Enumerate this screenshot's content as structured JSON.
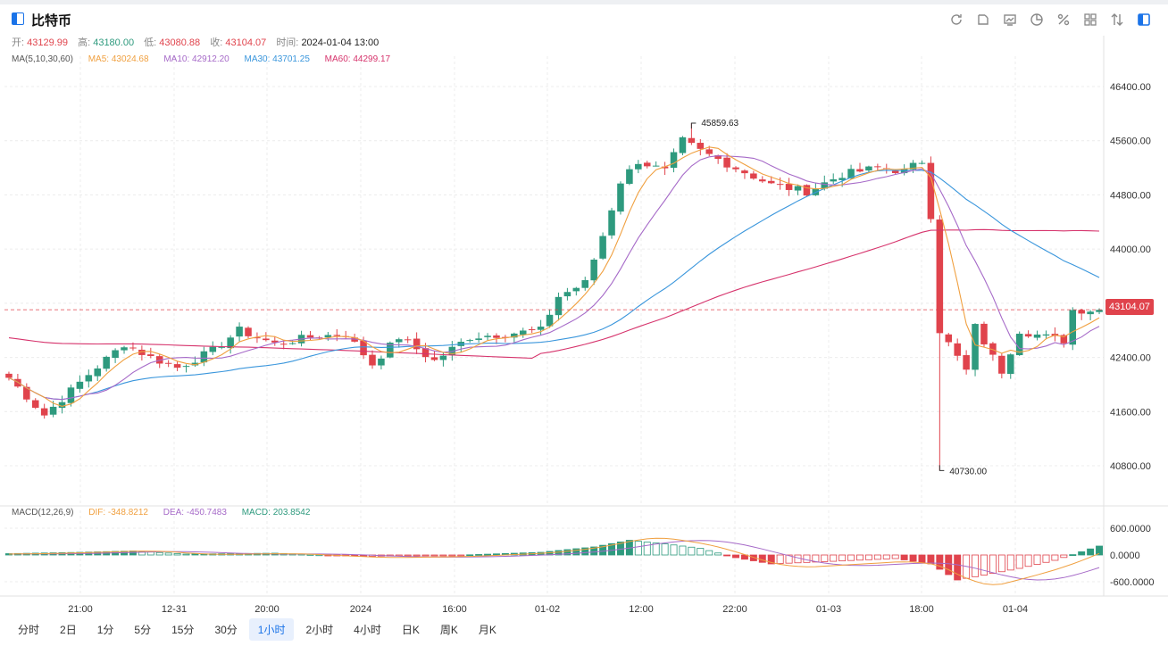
{
  "header": {
    "title": "比特币"
  },
  "toolbar": [
    {
      "name": "refresh-icon"
    },
    {
      "name": "draw-icon"
    },
    {
      "name": "indicator-icon"
    },
    {
      "name": "pie-icon"
    },
    {
      "name": "percent-icon"
    },
    {
      "name": "grid-icon"
    },
    {
      "name": "sort-icon"
    },
    {
      "name": "layout-icon"
    }
  ],
  "ohlc": {
    "open_label": "开:",
    "open": "43129.99",
    "high_label": "高:",
    "high": "43180.00",
    "low_label": "低:",
    "low": "43080.88",
    "close_label": "收:",
    "close": "43104.07",
    "time_label": "时间:",
    "time": "2024-01-04 13:00"
  },
  "ma": {
    "label": "MA(5,10,30,60)",
    "ma5": "MA5: 43024.68",
    "ma10": "MA10: 42912.20",
    "ma30": "MA30: 43701.25",
    "ma60": "MA60: 44299.17"
  },
  "macd": {
    "label": "MACD(12,26,9)",
    "dif": "DIF: -348.8212",
    "dea": "DEA: -450.7483",
    "macd": "MACD: 203.8542"
  },
  "price_tag": "43104.07",
  "annotations": {
    "high": "45859.63",
    "low": "40730.00"
  },
  "colors": {
    "up": "#2e9a7e",
    "down": "#e0434c",
    "ma5": "#f0a040",
    "ma10": "#a66ac8",
    "ma30": "#3a96dc",
    "ma60": "#d6336c",
    "accent": "#1a73e8"
  },
  "periods": [
    "分时",
    "2日",
    "1分",
    "5分",
    "15分",
    "30分",
    "1小时",
    "2小时",
    "4小时",
    "日K",
    "周K",
    "月K"
  ],
  "active_period": "1小时",
  "chart_data": {
    "type": "candlestick",
    "y_axis": [
      "46400.00",
      "45600.00",
      "44800.00",
      "44000.00",
      "43200.00",
      "42400.00",
      "41600.00",
      "40800.00"
    ],
    "y_ticks": [
      46400,
      45600,
      44800,
      44000,
      43200,
      42400,
      41600,
      40800
    ],
    "macd_axis": [
      "600.0000",
      "0.0000",
      "-600.0000"
    ],
    "macd_ticks": [
      600,
      0,
      -600
    ],
    "x_labels": [
      "21:00",
      "12-31",
      "20:00",
      "2024",
      "16:00",
      "01-02",
      "12:00",
      "22:00",
      "01-03",
      "18:00",
      "01-04"
    ],
    "anchors": [
      {
        "i": 0,
        "p": 42100
      },
      {
        "i": 4,
        "p": 41550
      },
      {
        "i": 9,
        "p": 42150
      },
      {
        "i": 13,
        "p": 42600
      },
      {
        "i": 16,
        "p": 42400
      },
      {
        "i": 19,
        "p": 42250
      },
      {
        "i": 23,
        "p": 42500
      },
      {
        "i": 26,
        "p": 42800
      },
      {
        "i": 30,
        "p": 42600
      },
      {
        "i": 34,
        "p": 42700
      },
      {
        "i": 38,
        "p": 42750
      },
      {
        "i": 41,
        "p": 42300
      },
      {
        "i": 44,
        "p": 42700
      },
      {
        "i": 48,
        "p": 42350
      },
      {
        "i": 52,
        "p": 42700
      },
      {
        "i": 56,
        "p": 42750
      },
      {
        "i": 60,
        "p": 42800
      },
      {
        "i": 62,
        "p": 43300
      },
      {
        "i": 65,
        "p": 43500
      },
      {
        "i": 67,
        "p": 44200
      },
      {
        "i": 69,
        "p": 45000
      },
      {
        "i": 71,
        "p": 45300
      },
      {
        "i": 74,
        "p": 45150
      },
      {
        "i": 76,
        "p": 45600
      },
      {
        "i": 78,
        "p": 45450
      },
      {
        "i": 82,
        "p": 45200
      },
      {
        "i": 86,
        "p": 44950
      },
      {
        "i": 90,
        "p": 44850
      },
      {
        "i": 94,
        "p": 45100
      },
      {
        "i": 98,
        "p": 45200
      },
      {
        "i": 101,
        "p": 45150
      },
      {
        "i": 103,
        "p": 45300
      },
      {
        "i": 104,
        "p": 44500
      },
      {
        "i": 105,
        "p": 42800
      },
      {
        "i": 107,
        "p": 42400
      },
      {
        "i": 108,
        "p": 42200
      },
      {
        "i": 109,
        "p": 42850
      },
      {
        "i": 111,
        "p": 42400
      },
      {
        "i": 112,
        "p": 42200
      },
      {
        "i": 114,
        "p": 42800
      },
      {
        "i": 117,
        "p": 42700
      },
      {
        "i": 119,
        "p": 42650
      },
      {
        "i": 120,
        "p": 43100
      },
      {
        "i": 123,
        "p": 43104
      }
    ],
    "macd_anchors": [
      {
        "i": 0,
        "v": 30
      },
      {
        "i": 8,
        "v": 60
      },
      {
        "i": 14,
        "v": 90
      },
      {
        "i": 20,
        "v": 20
      },
      {
        "i": 30,
        "v": 40
      },
      {
        "i": 40,
        "v": -30
      },
      {
        "i": 50,
        "v": -10
      },
      {
        "i": 60,
        "v": 60
      },
      {
        "i": 66,
        "v": 180
      },
      {
        "i": 70,
        "v": 330
      },
      {
        "i": 74,
        "v": 250
      },
      {
        "i": 78,
        "v": 150
      },
      {
        "i": 82,
        "v": -60
      },
      {
        "i": 86,
        "v": -200
      },
      {
        "i": 92,
        "v": -150
      },
      {
        "i": 100,
        "v": -80
      },
      {
        "i": 104,
        "v": -200
      },
      {
        "i": 107,
        "v": -560
      },
      {
        "i": 110,
        "v": -450
      },
      {
        "i": 114,
        "v": -300
      },
      {
        "i": 118,
        "v": -120
      },
      {
        "i": 123,
        "v": 200
      }
    ]
  }
}
